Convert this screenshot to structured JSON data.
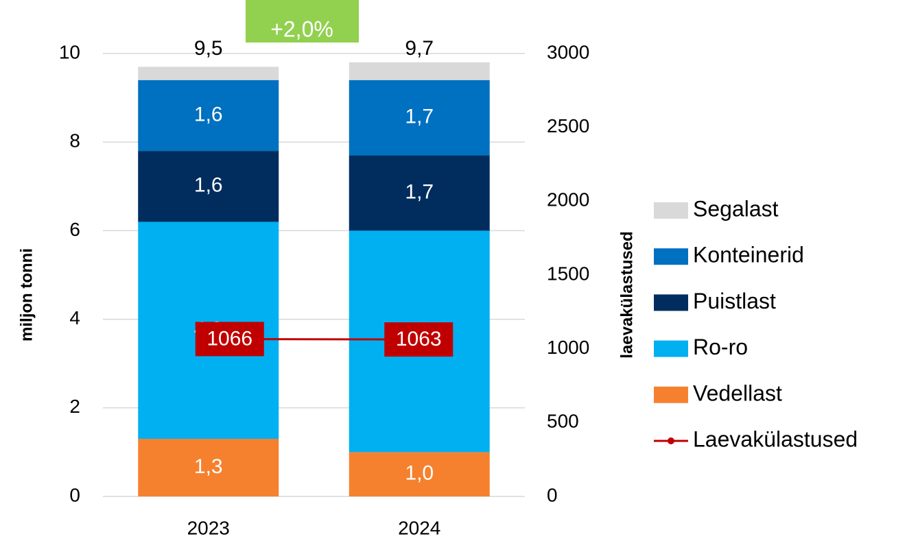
{
  "chart_data": {
    "type": "bar",
    "stacked": true,
    "categories": [
      "2023",
      "2024"
    ],
    "series": [
      {
        "name": "Vedellast",
        "color": "#F5812F",
        "values": [
          1.3,
          1.0
        ],
        "value_labels": [
          "1,3",
          "1,0"
        ]
      },
      {
        "name": "Ro-ro",
        "color": "#00B0F0",
        "values": [
          4.9,
          5.0
        ],
        "value_labels": [
          "4,9",
          "5,0"
        ]
      },
      {
        "name": "Puistlast",
        "color": "#002D5E",
        "values": [
          1.6,
          1.7
        ],
        "value_labels": [
          "1,6",
          "1,7"
        ]
      },
      {
        "name": "Konteinerid",
        "color": "#0070C0",
        "values": [
          1.6,
          1.7
        ],
        "value_labels": [
          "1,6",
          "1,7"
        ]
      },
      {
        "name": "Segalast",
        "color": "#D9D9D9",
        "values": [
          0.3,
          0.4
        ]
      },
      {
        "name": "Laevakülastused",
        "type": "line",
        "axis": "y2",
        "color": "#C00000",
        "values": [
          1066,
          1063
        ]
      }
    ],
    "ylabel": "miljon tonni",
    "y2label": "laevakülastused",
    "ylim": [
      0,
      10
    ],
    "yticks": [
      0,
      2,
      4,
      6,
      8,
      10
    ],
    "y2lim": [
      0,
      3000
    ],
    "y2ticks": [
      0,
      500,
      1000,
      1500,
      2000,
      2500,
      3000
    ],
    "grid": true,
    "legend": "right",
    "annotations": [
      "9,5",
      "9,7",
      "+2,0%"
    ]
  }
}
